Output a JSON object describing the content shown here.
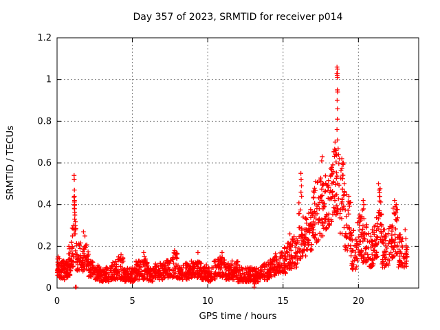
{
  "chart_data": {
    "type": "scatter",
    "title": "Day 357 of 2023, SRMTID for receiver p014",
    "xlabel": "GPS time / hours",
    "ylabel": "SRMTID / TECUs",
    "xlim": [
      0,
      24
    ],
    "ylim": [
      0,
      1.2
    ],
    "xtick_values": [
      0,
      5,
      10,
      15,
      20
    ],
    "xtick_labels": [
      "0",
      "5",
      "10",
      "15",
      "20"
    ],
    "ytick_values": [
      0,
      0.2,
      0.4,
      0.6,
      0.8,
      1,
      1.2
    ],
    "ytick_labels": [
      "0",
      "0.2",
      "0.4",
      "0.6",
      "0.8",
      "1",
      "1.2"
    ],
    "grid": true,
    "legend": "none",
    "marker": "plus",
    "colors": {
      "marker": "#ff0000",
      "grid": "#808080",
      "axis": "#000000",
      "background": "#ffffff"
    },
    "summary": "SRMTID vs GPS time for receiver p014, day 357 of 2023. Quiet baseline ~0.03-0.15 TECUs from 2-14 h; narrow spike to 0.54 near 1.2 h with a couple of zero values near 1.25 h; zero value near 13.1 h; activity rises after 14 h; spike to ~0.55 at 16.2 h; broad disturbance 17-23 h peaking in a narrow column up to 1.06 TECUs near 18.6 h; secondary peaks ~0.50 near 21.4 h and ~0.42 near 22.4 h.",
    "envelope_bins": [
      [
        0.0,
        0.25,
        0.05,
        0.17,
        28
      ],
      [
        0.25,
        0.5,
        0.04,
        0.14,
        28
      ],
      [
        0.5,
        0.75,
        0.05,
        0.15,
        28
      ],
      [
        0.75,
        1.0,
        0.06,
        0.2,
        26
      ],
      [
        1.0,
        1.1,
        0.1,
        0.3,
        10
      ],
      [
        1.1,
        1.25,
        0.15,
        0.45,
        12
      ],
      [
        1.25,
        1.45,
        0.08,
        0.22,
        18
      ],
      [
        1.45,
        1.8,
        0.08,
        0.22,
        30
      ],
      [
        1.8,
        2.1,
        0.09,
        0.24,
        26
      ],
      [
        2.1,
        2.4,
        0.05,
        0.13,
        26
      ],
      [
        2.4,
        2.8,
        0.04,
        0.11,
        34
      ],
      [
        2.8,
        3.2,
        0.03,
        0.09,
        34
      ],
      [
        3.2,
        3.6,
        0.03,
        0.1,
        34
      ],
      [
        3.6,
        4.0,
        0.04,
        0.13,
        34
      ],
      [
        4.0,
        4.4,
        0.04,
        0.15,
        34
      ],
      [
        4.4,
        4.8,
        0.03,
        0.1,
        34
      ],
      [
        4.8,
        5.2,
        0.03,
        0.1,
        34
      ],
      [
        5.2,
        5.6,
        0.04,
        0.13,
        34
      ],
      [
        5.6,
        6.0,
        0.04,
        0.16,
        34
      ],
      [
        6.0,
        6.4,
        0.03,
        0.1,
        34
      ],
      [
        6.4,
        6.8,
        0.04,
        0.12,
        34
      ],
      [
        6.8,
        7.2,
        0.04,
        0.12,
        34
      ],
      [
        7.2,
        7.6,
        0.05,
        0.14,
        34
      ],
      [
        7.6,
        8.0,
        0.05,
        0.17,
        34
      ],
      [
        8.0,
        8.4,
        0.04,
        0.11,
        34
      ],
      [
        8.4,
        8.8,
        0.04,
        0.12,
        34
      ],
      [
        8.8,
        9.2,
        0.05,
        0.13,
        34
      ],
      [
        9.2,
        9.6,
        0.05,
        0.16,
        34
      ],
      [
        9.6,
        10.0,
        0.04,
        0.12,
        34
      ],
      [
        10.0,
        10.4,
        0.03,
        0.1,
        34
      ],
      [
        10.4,
        10.8,
        0.04,
        0.14,
        34
      ],
      [
        10.8,
        11.2,
        0.05,
        0.16,
        34
      ],
      [
        11.2,
        11.6,
        0.04,
        0.12,
        34
      ],
      [
        11.6,
        12.0,
        0.04,
        0.13,
        34
      ],
      [
        12.0,
        12.4,
        0.03,
        0.1,
        34
      ],
      [
        12.4,
        12.8,
        0.03,
        0.1,
        34
      ],
      [
        12.8,
        13.2,
        0.03,
        0.1,
        34
      ],
      [
        13.2,
        13.6,
        0.03,
        0.1,
        34
      ],
      [
        13.6,
        14.0,
        0.04,
        0.12,
        34
      ],
      [
        14.0,
        14.4,
        0.05,
        0.14,
        34
      ],
      [
        14.4,
        14.8,
        0.06,
        0.17,
        34
      ],
      [
        14.8,
        15.2,
        0.07,
        0.2,
        34
      ],
      [
        15.2,
        15.6,
        0.09,
        0.22,
        34
      ],
      [
        15.6,
        16.0,
        0.1,
        0.26,
        34
      ],
      [
        16.0,
        16.35,
        0.14,
        0.42,
        30
      ],
      [
        16.35,
        16.7,
        0.15,
        0.35,
        30
      ],
      [
        16.7,
        17.0,
        0.18,
        0.38,
        26
      ],
      [
        17.0,
        17.35,
        0.22,
        0.52,
        30
      ],
      [
        17.35,
        17.7,
        0.25,
        0.6,
        30
      ],
      [
        17.7,
        18.0,
        0.28,
        0.55,
        26
      ],
      [
        18.0,
        18.3,
        0.3,
        0.58,
        26
      ],
      [
        18.3,
        18.75,
        0.35,
        0.68,
        40
      ],
      [
        18.75,
        19.1,
        0.25,
        0.6,
        30
      ],
      [
        19.1,
        19.5,
        0.18,
        0.45,
        34
      ],
      [
        19.5,
        19.9,
        0.08,
        0.3,
        34
      ],
      [
        19.9,
        20.2,
        0.12,
        0.35,
        26
      ],
      [
        20.2,
        20.6,
        0.12,
        0.38,
        34
      ],
      [
        20.6,
        21.0,
        0.1,
        0.28,
        34
      ],
      [
        21.0,
        21.3,
        0.14,
        0.35,
        26
      ],
      [
        21.3,
        21.55,
        0.2,
        0.48,
        22
      ],
      [
        21.55,
        22.0,
        0.1,
        0.28,
        38
      ],
      [
        22.0,
        22.3,
        0.13,
        0.3,
        26
      ],
      [
        22.3,
        22.6,
        0.15,
        0.4,
        26
      ],
      [
        22.6,
        23.0,
        0.1,
        0.28,
        34
      ],
      [
        23.0,
        23.25,
        0.1,
        0.24,
        20
      ]
    ],
    "outliers": [
      [
        1.13,
        0.54
      ],
      [
        1.14,
        0.52
      ],
      [
        1.15,
        0.47
      ],
      [
        1.15,
        0.44
      ],
      [
        1.16,
        0.42
      ],
      [
        1.17,
        0.4
      ],
      [
        1.16,
        0.38
      ],
      [
        1.18,
        0.35
      ],
      [
        1.17,
        0.33
      ],
      [
        1.19,
        0.3
      ],
      [
        1.18,
        0.28
      ],
      [
        1.2,
        0.26
      ],
      [
        1.22,
        0.005
      ],
      [
        1.27,
        0.005
      ],
      [
        13.08,
        0.005
      ],
      [
        13.12,
        0.02
      ],
      [
        0.95,
        0.22
      ],
      [
        1.02,
        0.25
      ],
      [
        1.07,
        0.3
      ],
      [
        1.75,
        0.27
      ],
      [
        1.85,
        0.25
      ],
      [
        4.25,
        0.16
      ],
      [
        5.75,
        0.17
      ],
      [
        7.8,
        0.18
      ],
      [
        9.35,
        0.17
      ],
      [
        10.95,
        0.17
      ],
      [
        15.45,
        0.26
      ],
      [
        16.18,
        0.55
      ],
      [
        16.2,
        0.52
      ],
      [
        16.22,
        0.49
      ],
      [
        16.19,
        0.46
      ],
      [
        16.23,
        0.44
      ],
      [
        17.6,
        0.63
      ],
      [
        17.56,
        0.61
      ],
      [
        18.45,
        0.7
      ],
      [
        18.52,
        0.66
      ],
      [
        18.58,
        1.06
      ],
      [
        18.6,
        1.05
      ],
      [
        18.57,
        1.03
      ],
      [
        18.61,
        1.03
      ],
      [
        18.59,
        1.02
      ],
      [
        18.6,
        1.01
      ],
      [
        18.6,
        0.95
      ],
      [
        18.62,
        0.94
      ],
      [
        18.59,
        0.9
      ],
      [
        18.61,
        0.86
      ],
      [
        18.6,
        0.81
      ],
      [
        18.58,
        0.76
      ],
      [
        18.61,
        0.71
      ],
      [
        18.68,
        0.64
      ],
      [
        18.75,
        0.62
      ],
      [
        18.9,
        0.62
      ],
      [
        19.0,
        0.6
      ],
      [
        20.32,
        0.42
      ],
      [
        20.36,
        0.4
      ],
      [
        21.33,
        0.5
      ],
      [
        21.37,
        0.47
      ],
      [
        21.4,
        0.44
      ],
      [
        22.4,
        0.42
      ],
      [
        22.44,
        0.39
      ],
      [
        22.36,
        0.36
      ],
      [
        23.1,
        0.28
      ]
    ]
  }
}
